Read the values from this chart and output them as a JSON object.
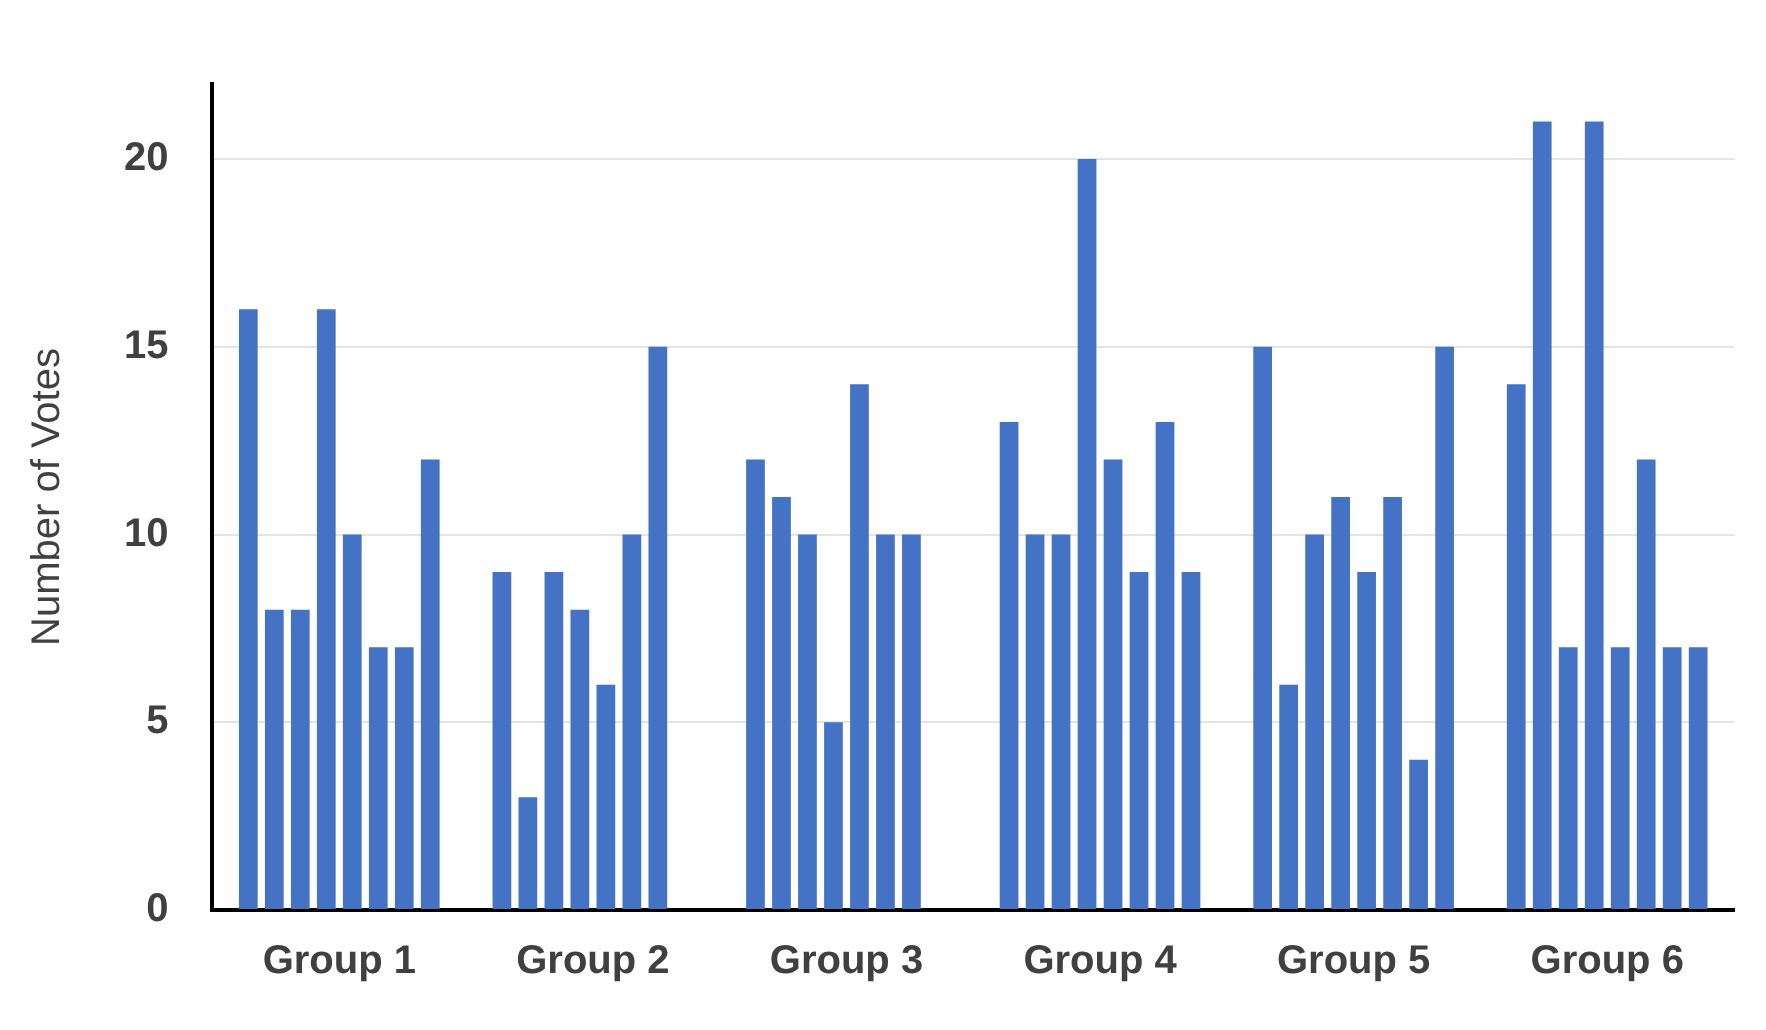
{
  "chart_data": {
    "type": "bar",
    "ylabel": "Number of Votes",
    "categories": [
      "Group 1",
      "Group 2",
      "Group 3",
      "Group 4",
      "Group 5",
      "Group 6"
    ],
    "series": [
      {
        "color": "#4472c4",
        "values": [
          16,
          9,
          12,
          13,
          15,
          14
        ]
      },
      {
        "color": "#4472c4",
        "values": [
          8,
          3,
          11,
          10,
          6,
          21
        ]
      },
      {
        "color": "#4472c4",
        "values": [
          8,
          9,
          10,
          10,
          10,
          7
        ]
      },
      {
        "color": "#4472c4",
        "values": [
          16,
          8,
          5,
          20,
          11,
          21
        ]
      },
      {
        "color": "#4472c4",
        "values": [
          10,
          6,
          14,
          12,
          9,
          7
        ]
      },
      {
        "color": "#4472c4",
        "values": [
          7,
          10,
          10,
          9,
          11,
          12
        ]
      },
      {
        "color": "#4472c4",
        "values": [
          7,
          15,
          10,
          13,
          4,
          7
        ]
      },
      {
        "color": "#4472c4",
        "values": [
          12,
          null,
          null,
          9,
          15,
          7
        ]
      }
    ],
    "ylim": [
      0,
      22
    ],
    "yticks": [
      0,
      5,
      10,
      15,
      20
    ],
    "grid": "y",
    "legend": false
  }
}
